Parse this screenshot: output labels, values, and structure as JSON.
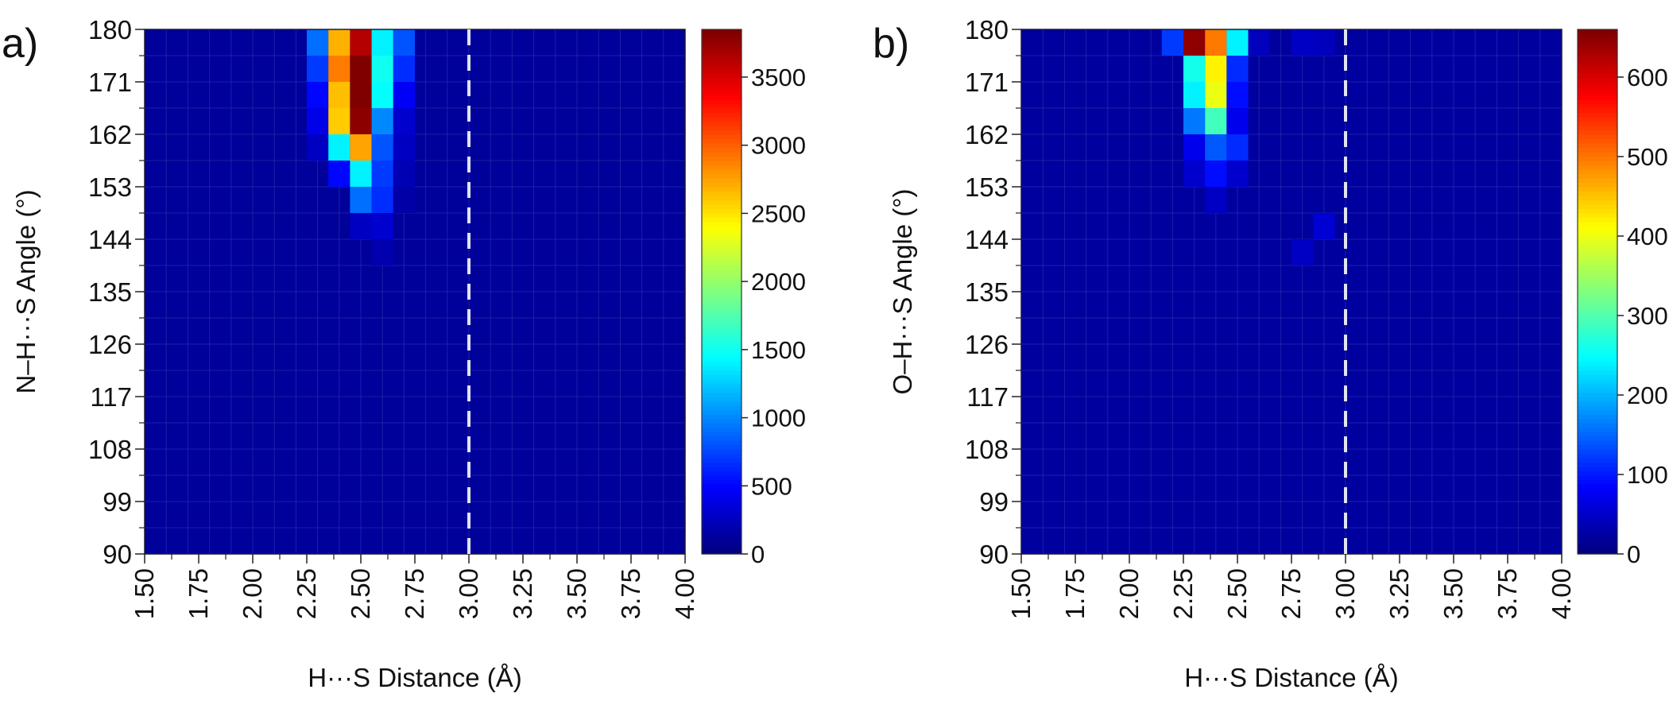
{
  "chart_data": [
    {
      "panel_label": "a)",
      "type": "heatmap",
      "xlabel": "H···S Distance (Å)",
      "ylabel": "N–H···S Angle (°)",
      "x_ticks": [
        "1.50",
        "1.75",
        "2.00",
        "2.25",
        "2.50",
        "2.75",
        "3.00",
        "3.25",
        "3.50",
        "3.75",
        "4.00"
      ],
      "y_ticks": [
        "90",
        "99",
        "108",
        "117",
        "126",
        "135",
        "144",
        "153",
        "162",
        "171",
        "180"
      ],
      "xlim": [
        1.5,
        4.0
      ],
      "ylim": [
        90,
        180
      ],
      "bin_width_x": 0.1,
      "bin_width_y": 4.5,
      "colorbar": {
        "min": 0,
        "max": 3850,
        "ticks": [
          "0",
          "500",
          "1000",
          "1500",
          "2000",
          "2500",
          "3000",
          "3500"
        ]
      },
      "colormap": "jet",
      "reference_line": {
        "x": 3.0,
        "style": "dashed",
        "color": "#dfe3f2"
      },
      "background_value": 100,
      "cells": [
        {
          "x": 2.3,
          "y": 180,
          "v": 900
        },
        {
          "x": 2.4,
          "y": 180,
          "v": 2700
        },
        {
          "x": 2.5,
          "y": 180,
          "v": 3650
        },
        {
          "x": 2.6,
          "y": 180,
          "v": 1400
        },
        {
          "x": 2.7,
          "y": 180,
          "v": 800
        },
        {
          "x": 2.3,
          "y": 175.5,
          "v": 700
        },
        {
          "x": 2.4,
          "y": 175.5,
          "v": 2900
        },
        {
          "x": 2.5,
          "y": 175.5,
          "v": 3850
        },
        {
          "x": 2.6,
          "y": 175.5,
          "v": 1500
        },
        {
          "x": 2.7,
          "y": 175.5,
          "v": 650
        },
        {
          "x": 2.3,
          "y": 171,
          "v": 500
        },
        {
          "x": 2.4,
          "y": 171,
          "v": 2650
        },
        {
          "x": 2.5,
          "y": 171,
          "v": 3850
        },
        {
          "x": 2.6,
          "y": 171,
          "v": 1450
        },
        {
          "x": 2.7,
          "y": 171,
          "v": 450
        },
        {
          "x": 2.3,
          "y": 166.5,
          "v": 400
        },
        {
          "x": 2.4,
          "y": 166.5,
          "v": 2600
        },
        {
          "x": 2.5,
          "y": 166.5,
          "v": 3800
        },
        {
          "x": 2.6,
          "y": 166.5,
          "v": 1000
        },
        {
          "x": 2.7,
          "y": 166.5,
          "v": 300
        },
        {
          "x": 2.3,
          "y": 162,
          "v": 250
        },
        {
          "x": 2.4,
          "y": 162,
          "v": 1400
        },
        {
          "x": 2.5,
          "y": 162,
          "v": 2750
        },
        {
          "x": 2.6,
          "y": 162,
          "v": 800
        },
        {
          "x": 2.7,
          "y": 162,
          "v": 250
        },
        {
          "x": 2.4,
          "y": 157.5,
          "v": 500
        },
        {
          "x": 2.5,
          "y": 157.5,
          "v": 1400
        },
        {
          "x": 2.6,
          "y": 157.5,
          "v": 700
        },
        {
          "x": 2.7,
          "y": 157.5,
          "v": 200
        },
        {
          "x": 2.5,
          "y": 153,
          "v": 900
        },
        {
          "x": 2.6,
          "y": 153,
          "v": 650
        },
        {
          "x": 2.7,
          "y": 153,
          "v": 150
        },
        {
          "x": 2.5,
          "y": 148.5,
          "v": 250
        },
        {
          "x": 2.6,
          "y": 148.5,
          "v": 300
        },
        {
          "x": 2.6,
          "y": 144,
          "v": 180
        }
      ]
    },
    {
      "panel_label": "b)",
      "type": "heatmap",
      "xlabel": "H···S Distance (Å)",
      "ylabel": "O–H···S Angle (°)",
      "x_ticks": [
        "1.50",
        "1.75",
        "2.00",
        "2.25",
        "2.50",
        "2.75",
        "3.00",
        "3.25",
        "3.50",
        "3.75",
        "4.00"
      ],
      "y_ticks": [
        "90",
        "99",
        "108",
        "117",
        "126",
        "135",
        "144",
        "153",
        "162",
        "171",
        "180"
      ],
      "xlim": [
        1.5,
        4.0
      ],
      "ylim": [
        90,
        180
      ],
      "bin_width_x": 0.1,
      "bin_width_y": 4.5,
      "colorbar": {
        "min": 0,
        "max": 660,
        "ticks": [
          "0",
          "100",
          "200",
          "300",
          "400",
          "500",
          "600"
        ]
      },
      "colormap": "jet",
      "reference_line": {
        "x": 3.0,
        "style": "dashed",
        "color": "#dfe3f2"
      },
      "background_value": 20,
      "cells": [
        {
          "x": 2.2,
          "y": 180,
          "v": 120
        },
        {
          "x": 2.3,
          "y": 180,
          "v": 650
        },
        {
          "x": 2.4,
          "y": 180,
          "v": 500
        },
        {
          "x": 2.5,
          "y": 180,
          "v": 240
        },
        {
          "x": 2.6,
          "y": 180,
          "v": 40
        },
        {
          "x": 2.3,
          "y": 175.5,
          "v": 260
        },
        {
          "x": 2.4,
          "y": 175.5,
          "v": 420
        },
        {
          "x": 2.5,
          "y": 175.5,
          "v": 110
        },
        {
          "x": 2.3,
          "y": 171,
          "v": 240
        },
        {
          "x": 2.4,
          "y": 171,
          "v": 400
        },
        {
          "x": 2.5,
          "y": 171,
          "v": 90
        },
        {
          "x": 2.3,
          "y": 166.5,
          "v": 160
        },
        {
          "x": 2.4,
          "y": 166.5,
          "v": 290
        },
        {
          "x": 2.5,
          "y": 166.5,
          "v": 70
        },
        {
          "x": 2.3,
          "y": 162,
          "v": 70
        },
        {
          "x": 2.4,
          "y": 162,
          "v": 140
        },
        {
          "x": 2.5,
          "y": 162,
          "v": 110
        },
        {
          "x": 2.3,
          "y": 157.5,
          "v": 50
        },
        {
          "x": 2.4,
          "y": 157.5,
          "v": 90
        },
        {
          "x": 2.5,
          "y": 157.5,
          "v": 50
        },
        {
          "x": 2.4,
          "y": 153,
          "v": 45
        },
        {
          "x": 2.9,
          "y": 148.5,
          "v": 55
        },
        {
          "x": 2.8,
          "y": 144,
          "v": 45
        },
        {
          "x": 2.8,
          "y": 180,
          "v": 45
        },
        {
          "x": 2.9,
          "y": 180,
          "v": 40
        }
      ]
    }
  ]
}
